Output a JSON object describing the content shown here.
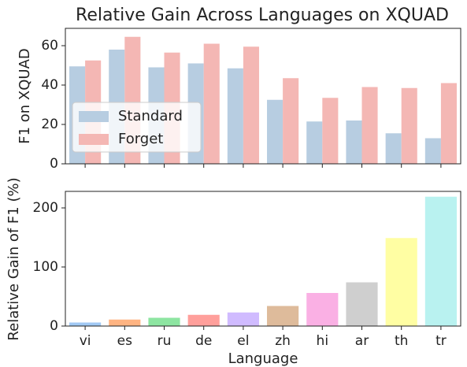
{
  "chart_data": [
    {
      "type": "bar",
      "title": "Relative Gain Across Languages on XQUAD",
      "y_label": "F1 on XQUAD",
      "categories": [
        null,
        null,
        null,
        null,
        null,
        null,
        null,
        null,
        null,
        null
      ],
      "series": [
        {
          "name": "Standard",
          "color": "#b7cde1",
          "values": [
            49.5,
            58,
            49,
            51,
            48.5,
            32.5,
            21.5,
            22,
            15.5,
            13
          ]
        },
        {
          "name": "Forget",
          "color": "#f4b7b4",
          "values": [
            52.5,
            64.5,
            56.5,
            61,
            59.5,
            43.5,
            33.5,
            39,
            38.5,
            41
          ]
        }
      ],
      "ylim": [
        0,
        68.8
      ],
      "yticks": [
        0,
        20,
        40,
        60
      ],
      "legend": "lower left"
    },
    {
      "type": "bar",
      "y_label": "Relative Gain of F1 (%)",
      "x_label": "Language",
      "categories": [
        "vi",
        "es",
        "ru",
        "de",
        "el",
        "zh",
        "hi",
        "ar",
        "th",
        "tr"
      ],
      "values": [
        6,
        11,
        14,
        19,
        23,
        34,
        56,
        74,
        149,
        219
      ],
      "colors": [
        "#a1c9f4",
        "#ffb482",
        "#8de5a1",
        "#ff9f9b",
        "#d0bbff",
        "#debb9b",
        "#fab0e4",
        "#cfcfcf",
        "#fffea3",
        "#b9f2f0"
      ],
      "ylim": [
        0,
        228
      ],
      "yticks": [
        0,
        100,
        200
      ]
    }
  ]
}
